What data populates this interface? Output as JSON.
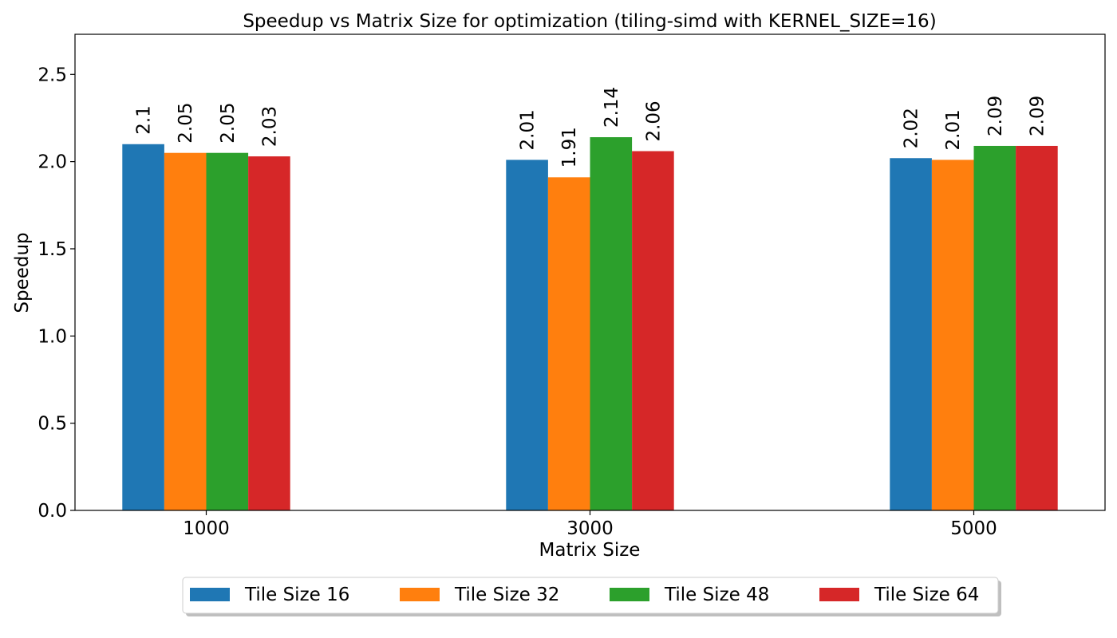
{
  "chart_data": {
    "type": "bar",
    "title": "Speedup vs Matrix Size for optimization (tiling-simd with KERNEL_SIZE=16)",
    "xlabel": "Matrix Size",
    "ylabel": "Speedup",
    "categories": [
      "1000",
      "3000",
      "5000"
    ],
    "ylim": [
      0,
      2.73
    ],
    "yticks": [
      0.0,
      0.5,
      1.0,
      1.5,
      2.0,
      2.5
    ],
    "grid": false,
    "legend_position": "bottom-center",
    "series": [
      {
        "name": "Tile Size 16",
        "color": "#1f77b4",
        "values": [
          2.1,
          2.01,
          2.02
        ],
        "labels": [
          "2.1",
          "2.01",
          "2.02"
        ]
      },
      {
        "name": "Tile Size 32",
        "color": "#ff7f0e",
        "values": [
          2.05,
          1.91,
          2.01
        ],
        "labels": [
          "2.05",
          "1.91",
          "2.01"
        ]
      },
      {
        "name": "Tile Size 48",
        "color": "#2ca02c",
        "values": [
          2.05,
          2.14,
          2.09
        ],
        "labels": [
          "2.05",
          "2.14",
          "2.09"
        ]
      },
      {
        "name": "Tile Size 64",
        "color": "#d62728",
        "values": [
          2.03,
          2.06,
          2.09
        ],
        "labels": [
          "2.03",
          "2.06",
          "2.09"
        ]
      }
    ]
  }
}
